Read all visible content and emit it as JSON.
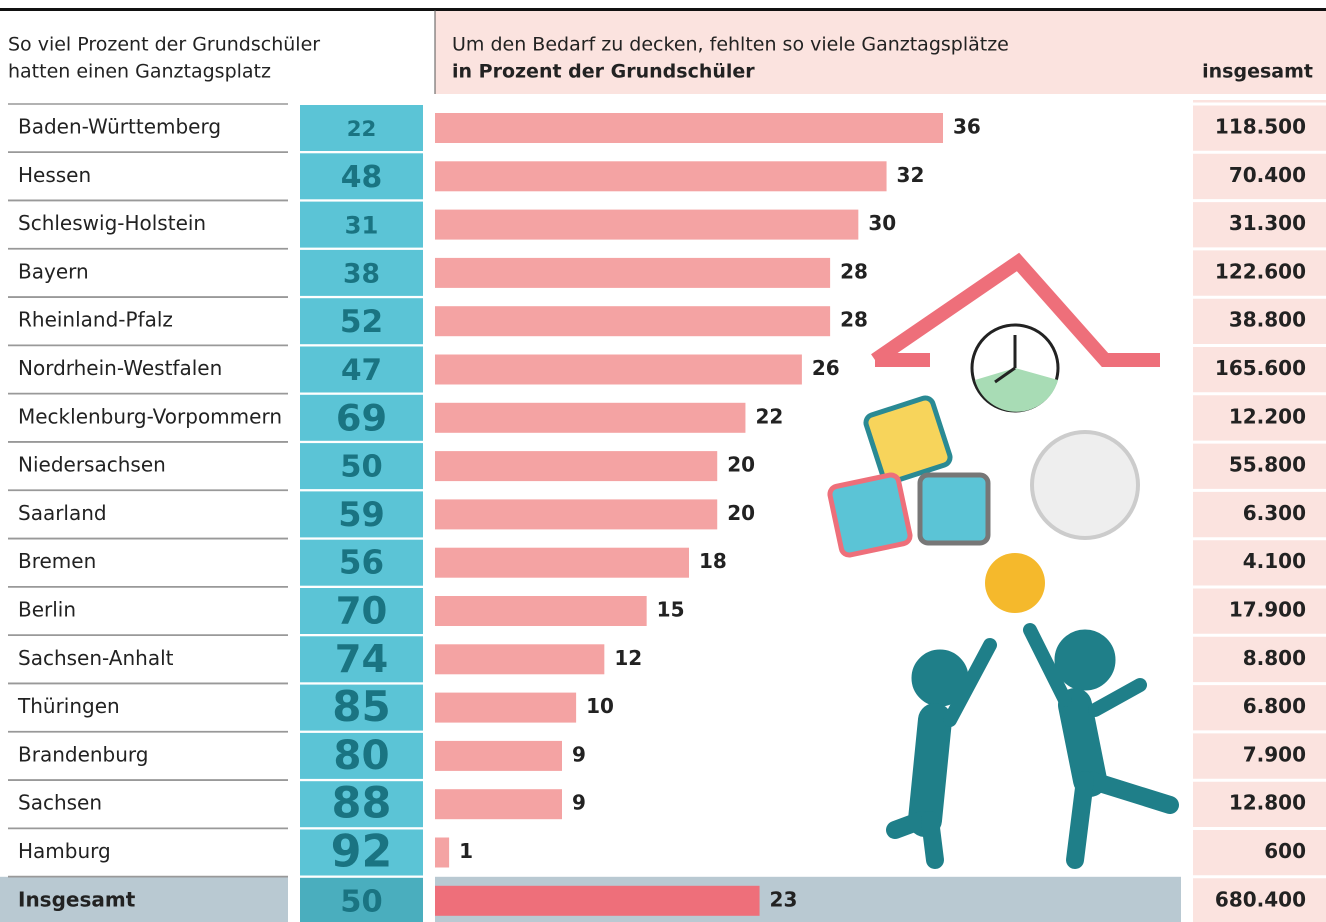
{
  "chart_data": {
    "type": "bar",
    "header_left_1": "So viel Prozent der Grundschüler",
    "header_left_2": "hatten einen Ganztagsplatz",
    "header_mid_1": "Um den Bedarf zu decken, fehlten so viele Ganztagsplätze",
    "header_mid_2": "in Prozent der Grundschüler",
    "header_right": "insgesamt",
    "categories": [
      "Baden-Württemberg",
      "Hessen",
      "Schleswig-Holstein",
      "Bayern",
      "Rheinland-Pfalz",
      "Nordrhein-Westfalen",
      "Mecklenburg-Vorpommern",
      "Niedersachsen",
      "Saarland",
      "Bremen",
      "Berlin",
      "Sachsen-Anhalt",
      "Thüringen",
      "Brandenburg",
      "Sachsen",
      "Hamburg",
      "Insgesamt"
    ],
    "share_values": [
      22,
      48,
      31,
      38,
      52,
      47,
      69,
      50,
      59,
      56,
      70,
      74,
      85,
      80,
      88,
      92,
      50
    ],
    "values": [
      36,
      32,
      30,
      28,
      28,
      26,
      22,
      20,
      20,
      18,
      15,
      12,
      10,
      9,
      9,
      1,
      23
    ],
    "color": "#f4a3a3",
    "totals": [
      118500,
      70400,
      31300,
      122600,
      38800,
      165600,
      12200,
      55800,
      6300,
      4100,
      17900,
      8800,
      6800,
      7900,
      12800,
      600,
      680400
    ],
    "totals_labels": [
      "118.500",
      "70.400",
      "31.300",
      "122.600",
      "38.800",
      "165.600",
      "12.200",
      "55.800",
      "6.300",
      "4.100",
      "17.900",
      "8.800",
      "6.800",
      "7.900",
      "12.800",
      "600",
      "680.400"
    ]
  }
}
